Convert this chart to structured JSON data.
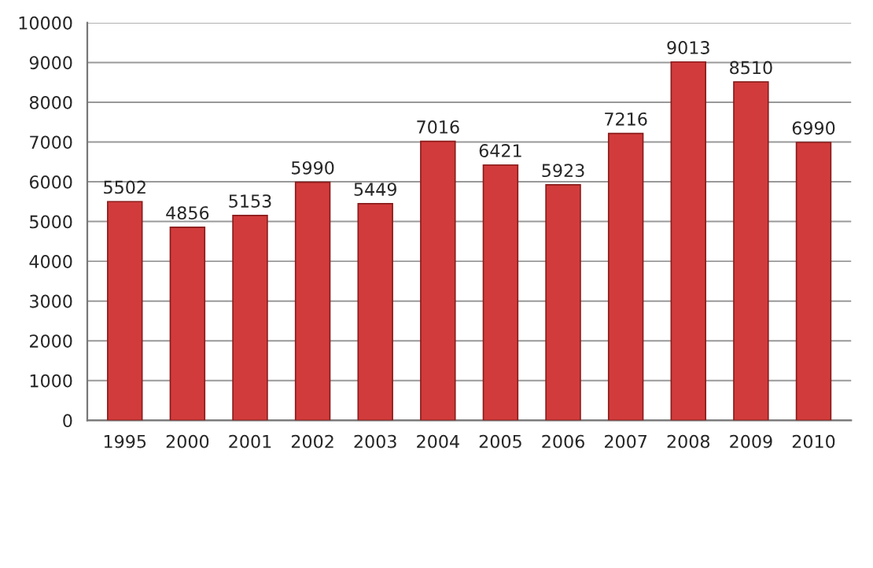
{
  "chart_data": {
    "type": "bar",
    "categories": [
      "1995",
      "2000",
      "2001",
      "2002",
      "2003",
      "2004",
      "2005",
      "2006",
      "2007",
      "2008",
      "2009",
      "2010"
    ],
    "values": [
      5502,
      4856,
      5153,
      5990,
      5449,
      7016,
      6421,
      5923,
      7216,
      9013,
      8510,
      6990
    ],
    "color": "#d23b3b",
    "ylim": [
      0,
      10000
    ],
    "yticks": [
      0,
      1000,
      2000,
      3000,
      4000,
      5000,
      6000,
      7000,
      8000,
      9000,
      10000
    ],
    "grid": "y",
    "data_labels": true
  }
}
